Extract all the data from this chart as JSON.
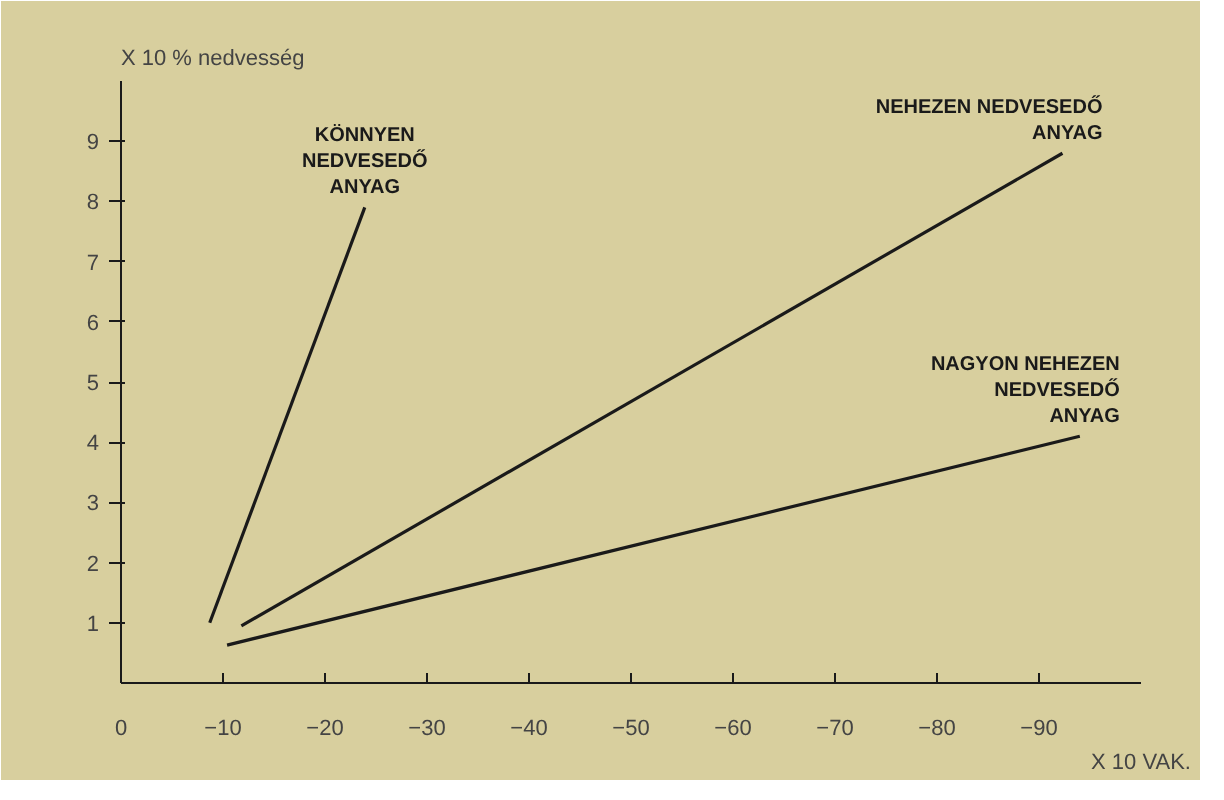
{
  "chart_data": {
    "type": "line",
    "xlabel": "X 10 VAK.",
    "ylabel": "X 10 % nedvesség",
    "xlim": [
      0,
      -100
    ],
    "ylim": [
      0,
      10
    ],
    "xticks": [
      0,
      -10,
      -20,
      -30,
      -40,
      -50,
      -60,
      -70,
      -80,
      -90
    ],
    "yticks": [
      1,
      2,
      3,
      4,
      5,
      6,
      7,
      8,
      9
    ],
    "grid": false,
    "marker": "none",
    "line_style": "solid",
    "series": [
      {
        "name": "KÖNNYEN\nNEDVESEDŐ\nANYAG",
        "color": "#1a1a1a",
        "x": [
          -8.7,
          -23.9
        ],
        "values": [
          1.0,
          7.9
        ]
      },
      {
        "name": "NEHEZEN NEDVESEDŐ\nANYAG",
        "color": "#1a1a1a",
        "x": [
          -11.8,
          -92.3
        ],
        "values": [
          0.95,
          8.8
        ]
      },
      {
        "name": "NAGYON NEHEZEN\nNEDVESEDŐ\nANYAG",
        "color": "#1a1a1a",
        "x": [
          -10.4,
          -94.0
        ],
        "values": [
          0.63,
          4.1
        ]
      }
    ]
  }
}
